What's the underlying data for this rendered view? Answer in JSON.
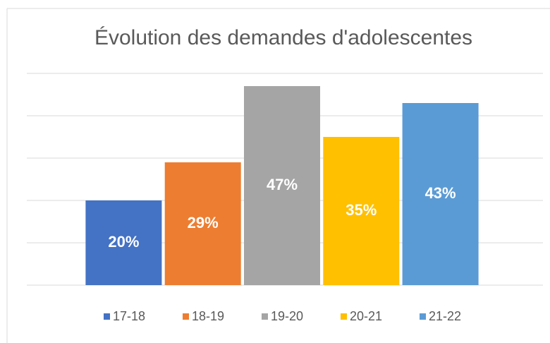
{
  "chart_data": {
    "type": "bar",
    "title": "Évolution des demandes d'adolescentes",
    "series": [
      {
        "name": "17-18",
        "color": "#4472c4",
        "values": [
          20
        ],
        "value_labels": [
          "20%"
        ]
      },
      {
        "name": "18-19",
        "color": "#ed7d31",
        "values": [
          29
        ],
        "value_labels": [
          "29%"
        ]
      },
      {
        "name": "19-20",
        "color": "#a5a5a5",
        "values": [
          47
        ],
        "value_labels": [
          "47%"
        ]
      },
      {
        "name": "20-21",
        "color": "#ffc000",
        "values": [
          35
        ],
        "value_labels": [
          "35%"
        ]
      },
      {
        "name": "21-22",
        "color": "#5b9bd5",
        "values": [
          43
        ],
        "value_labels": [
          "43%"
        ]
      }
    ],
    "ylim": [
      0,
      50
    ],
    "yticks": [
      0,
      10,
      20,
      30,
      40,
      50
    ],
    "grid": true,
    "legend": "bottom"
  }
}
